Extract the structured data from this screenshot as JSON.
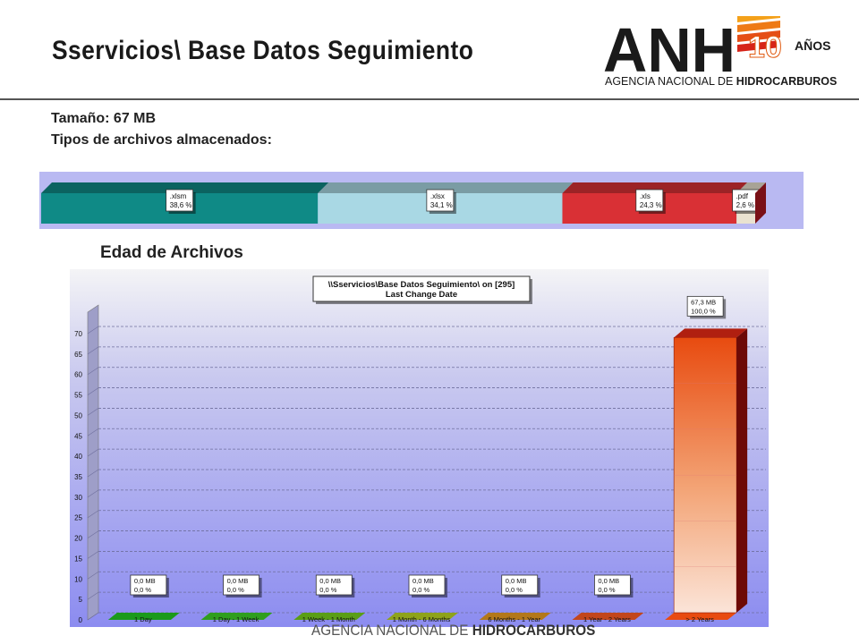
{
  "slide": {
    "title": "Sservicios\\ Base Datos Seguimiento",
    "size_label": "Tamaño: 67 MB",
    "types_label": "Tipos de archivos almacenados:",
    "age_heading": "Edad de Archivos",
    "footer_regular": "AGENCIA NACIONAL DE ",
    "footer_bold": "HIDROCARBUROS"
  },
  "logo": {
    "letters": "ANH",
    "badge": "10",
    "badge_suffix": "AÑOS",
    "org": "AGENCIA NACIONAL DE ",
    "org_bold": "HIDROCARBUROS"
  },
  "chart_data": [
    {
      "type": "bar",
      "orientation": "horizontal-stacked",
      "categories": [
        ".xlsm",
        ".xlsx",
        ".xls",
        ".pdf"
      ],
      "values": [
        38.6,
        34.1,
        24.3,
        2.6
      ],
      "value_labels": [
        "38,6 %",
        "34,1 %",
        "24,3 %",
        "2,6 %"
      ],
      "colors": [
        "#0f8a86",
        "#a9d8e4",
        "#d93035",
        "#e9e2d0"
      ]
    },
    {
      "type": "bar",
      "title": "\\\\Sservicios\\Base Datos Seguimiento\\  on  [295]",
      "subtitle": "Last Change Date",
      "categories": [
        "1 Day",
        "1 Day - 1 Week",
        "1 Week - 1 Month",
        "1 Month - 6 Months",
        "6 Months - 1 Year",
        "1 Year - 2 Years",
        "> 2 Years"
      ],
      "values": [
        0,
        0,
        0,
        0,
        0,
        0,
        67.3
      ],
      "labels_mb": [
        "0,0 MB",
        "0,0 MB",
        "0,0 MB",
        "0,0 MB",
        "0,0 MB",
        "0,0 MB",
        "67,3 MB"
      ],
      "labels_pct": [
        "0,0 %",
        "0,0 %",
        "0,0 %",
        "0,0 %",
        "0,0 %",
        "0,0 %",
        "100,0 %"
      ],
      "colors": [
        "#1b9a1b",
        "#2f9e1e",
        "#5a9e16",
        "#8ea31a",
        "#b3781a",
        "#c2461c",
        "#e84b10"
      ],
      "ylim": [
        0,
        70
      ],
      "yticks": [
        0,
        5,
        10,
        15,
        20,
        25,
        30,
        35,
        40,
        45,
        50,
        55,
        60,
        65,
        70
      ],
      "grid": true
    }
  ]
}
